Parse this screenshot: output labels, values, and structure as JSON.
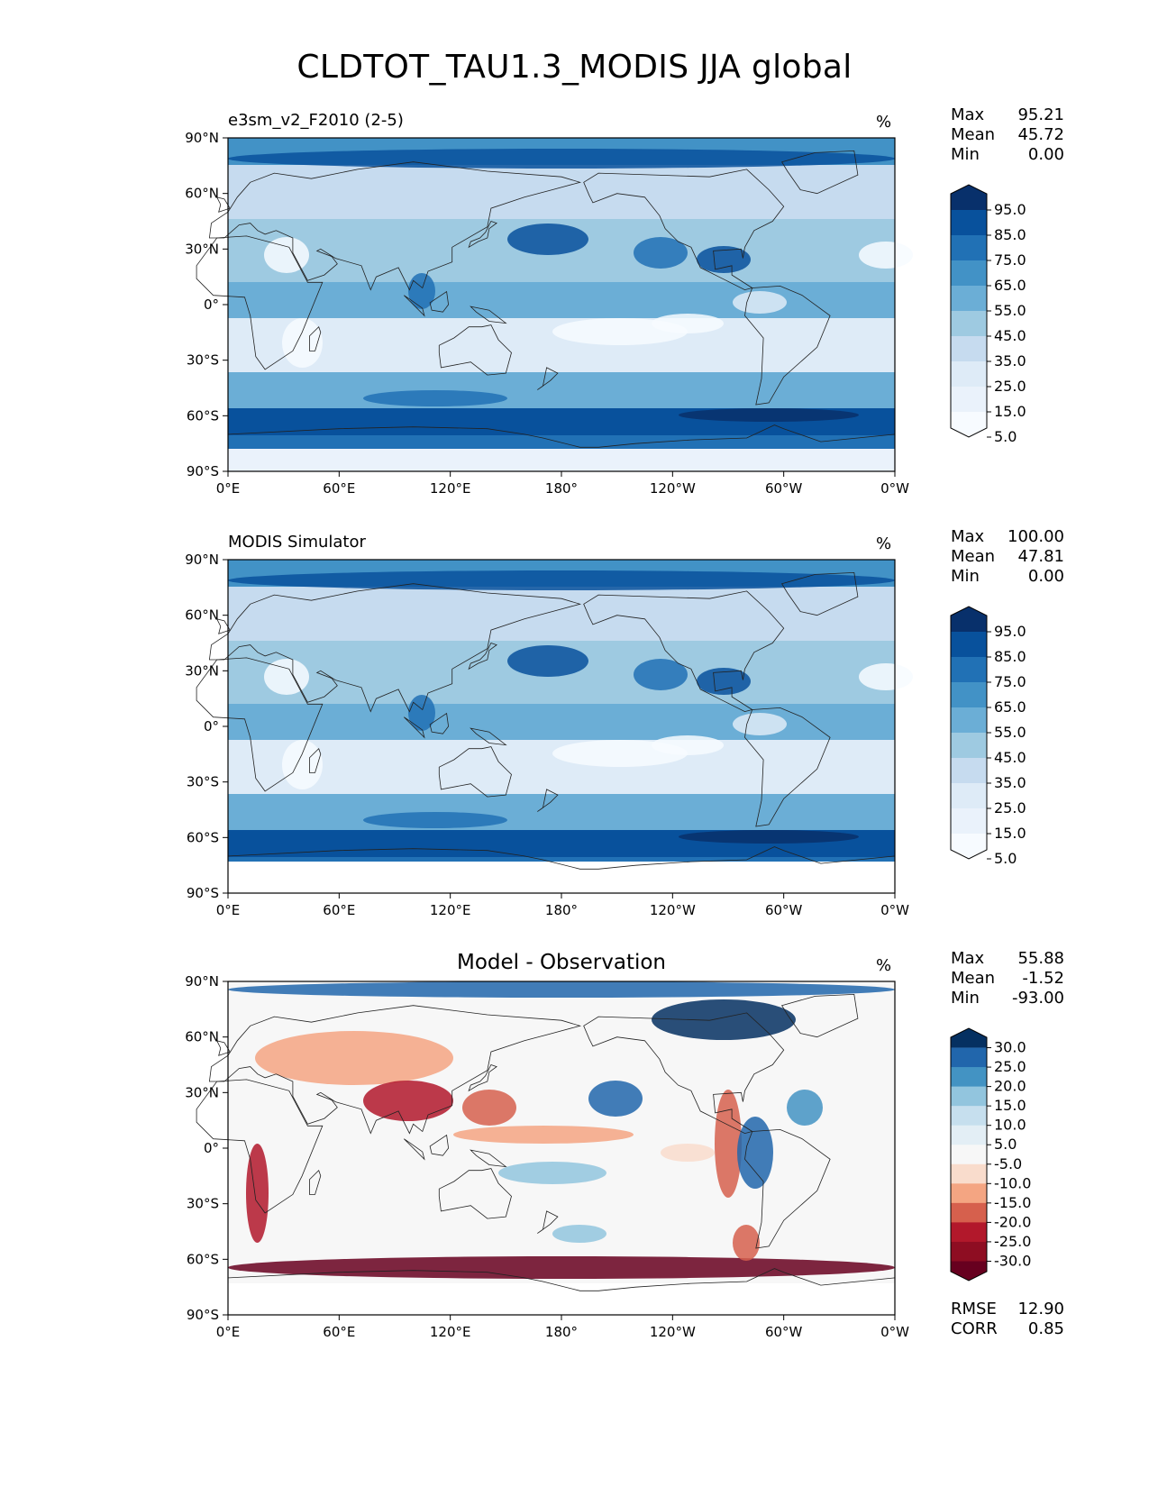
{
  "title": "CLDTOT_TAU1.3_MODIS JJA global",
  "panels": [
    {
      "label": "e3sm_v2_F2010 (2-5)",
      "unit": "%",
      "stats": [
        {
          "name": "Max",
          "value": "95.21"
        },
        {
          "name": "Mean",
          "value": "45.72"
        },
        {
          "name": "Min",
          "value": "0.00"
        }
      ],
      "colorbar": {
        "ticks": [
          "95.0",
          "85.0",
          "75.0",
          "65.0",
          "55.0",
          "45.0",
          "35.0",
          "25.0",
          "15.0",
          "5.0"
        ],
        "colors": [
          "#08306b",
          "#08519c",
          "#2171b5",
          "#4292c6",
          "#6baed6",
          "#9ecae1",
          "#c6dbef",
          "#deebf7",
          "#eaf2fb",
          "#f7fbff"
        ]
      }
    },
    {
      "label": "MODIS Simulator",
      "unit": "%",
      "stats": [
        {
          "name": "Max",
          "value": "100.00"
        },
        {
          "name": "Mean",
          "value": "47.81"
        },
        {
          "name": "Min",
          "value": "0.00"
        }
      ],
      "colorbar": {
        "ticks": [
          "95.0",
          "85.0",
          "75.0",
          "65.0",
          "55.0",
          "45.0",
          "35.0",
          "25.0",
          "15.0",
          "5.0"
        ],
        "colors": [
          "#08306b",
          "#08519c",
          "#2171b5",
          "#4292c6",
          "#6baed6",
          "#9ecae1",
          "#c6dbef",
          "#deebf7",
          "#eaf2fb",
          "#f7fbff"
        ]
      }
    },
    {
      "label": "Model - Observation",
      "unit": "%",
      "stats": [
        {
          "name": "Max",
          "value": "55.88"
        },
        {
          "name": "Mean",
          "value": "-1.52"
        },
        {
          "name": "Min",
          "value": "-93.00"
        }
      ],
      "colorbar": {
        "ticks": [
          "30.0",
          "25.0",
          "20.0",
          "15.0",
          "10.0",
          "5.0",
          "-5.0",
          "-10.0",
          "-15.0",
          "-20.0",
          "-25.0",
          "-30.0"
        ],
        "colors": [
          "#053061",
          "#2166ac",
          "#4393c3",
          "#92c5de",
          "#c6dfee",
          "#e3eef5",
          "#f7f7f7",
          "#f9dccc",
          "#f4a582",
          "#d6604d",
          "#b2182b",
          "#8e0d22",
          "#67001f"
        ]
      },
      "metrics": [
        {
          "name": "RMSE",
          "value": "12.90"
        },
        {
          "name": "CORR",
          "value": "0.85"
        }
      ]
    }
  ],
  "axes": {
    "lat_ticks": [
      "90°N",
      "60°N",
      "30°N",
      "0°",
      "30°S",
      "60°S",
      "90°S"
    ],
    "lon_ticks": [
      "0°E",
      "60°E",
      "120°E",
      "180°",
      "120°W",
      "60°W",
      "0°W"
    ]
  }
}
